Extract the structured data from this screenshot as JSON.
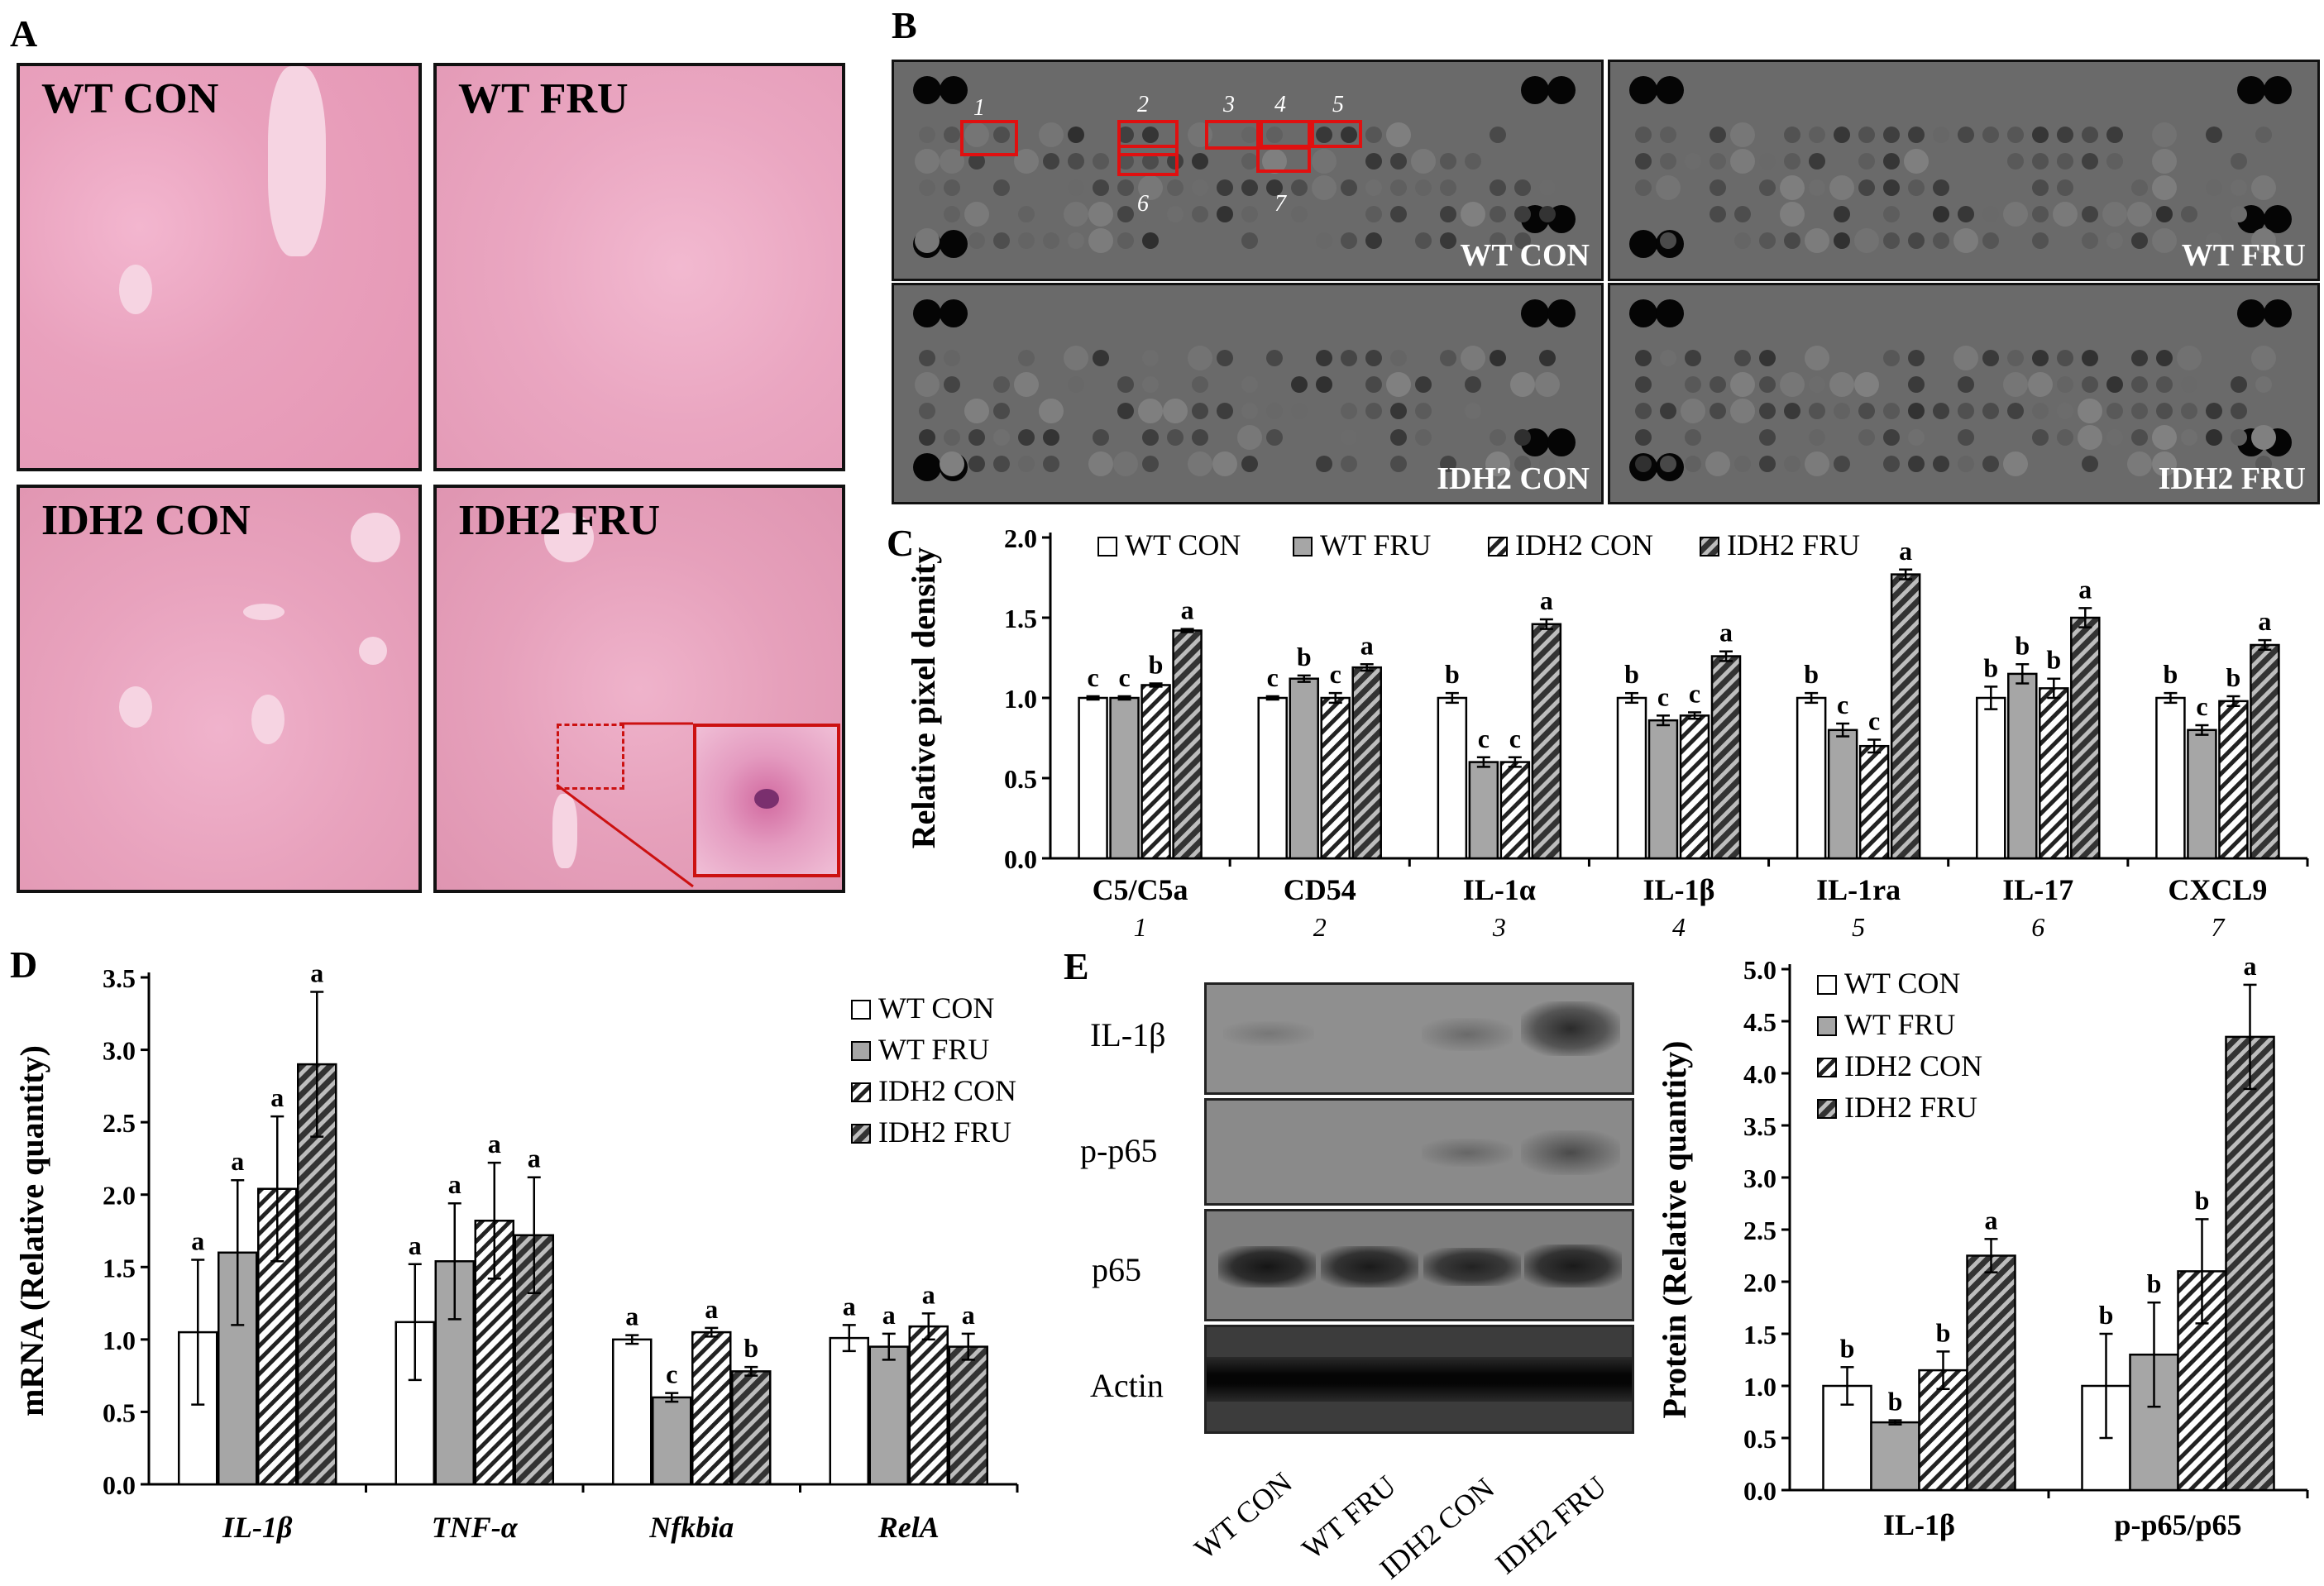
{
  "panels": {
    "A": "A",
    "B": "B",
    "C": "C",
    "D": "D",
    "E": "E"
  },
  "panel_a": {
    "images": [
      "WT CON",
      "WT FRU",
      "IDH2 CON",
      "IDH2 FRU"
    ]
  },
  "panel_b": {
    "images": [
      "WT CON",
      "WT FRU",
      "IDH2 CON",
      "IDH2 FRU"
    ],
    "spot_numbers": [
      "1",
      "2",
      "3",
      "4",
      "5",
      "6",
      "7"
    ]
  },
  "panel_e_blot": {
    "rows": [
      "IL-1β",
      "p-p65",
      "p65",
      "Actin"
    ],
    "lanes": [
      "WT CON",
      "WT FRU",
      "IDH2 CON",
      "IDH2 FRU"
    ]
  },
  "chart_data": [
    {
      "id": "C",
      "type": "bar",
      "ylabel": "Relative pixel density",
      "ylim": [
        0,
        2.0
      ],
      "yticks": [
        "0.0",
        "0.5",
        "1.0",
        "1.5",
        "2.0"
      ],
      "categories": [
        "C5/C5a",
        "CD54",
        "IL-1α",
        "IL-1β",
        "IL-1ra",
        "IL-17",
        "CXCL9"
      ],
      "category_numbers": [
        "1",
        "2",
        "3",
        "4",
        "5",
        "6",
        "7"
      ],
      "legend_position": "top",
      "series": [
        {
          "name": "WT CON",
          "values": [
            1.0,
            1.0,
            1.0,
            1.0,
            1.0,
            1.0,
            1.0
          ],
          "errors": [
            0.01,
            0.01,
            0.03,
            0.03,
            0.03,
            0.07,
            0.03
          ],
          "letters": [
            "c",
            "c",
            "b",
            "b",
            "b",
            "b",
            "b"
          ]
        },
        {
          "name": "WT FRU",
          "values": [
            1.0,
            1.12,
            0.6,
            0.86,
            0.8,
            1.15,
            0.8
          ],
          "errors": [
            0.01,
            0.02,
            0.03,
            0.03,
            0.04,
            0.06,
            0.03
          ],
          "letters": [
            "c",
            "b",
            "c",
            "c",
            "c",
            "b",
            "c"
          ]
        },
        {
          "name": "IDH2 CON",
          "values": [
            1.08,
            1.0,
            0.6,
            0.89,
            0.7,
            1.06,
            0.98
          ],
          "errors": [
            0.01,
            0.03,
            0.03,
            0.02,
            0.04,
            0.06,
            0.03
          ],
          "letters": [
            "b",
            "c",
            "c",
            "c",
            "c",
            "b",
            "b"
          ]
        },
        {
          "name": "IDH2 FRU",
          "values": [
            1.42,
            1.19,
            1.46,
            1.26,
            1.77,
            1.5,
            1.33
          ],
          "errors": [
            0.01,
            0.02,
            0.03,
            0.03,
            0.03,
            0.06,
            0.03
          ],
          "letters": [
            "a",
            "a",
            "a",
            "a",
            "a",
            "a",
            "a"
          ]
        }
      ]
    },
    {
      "id": "D",
      "type": "bar",
      "ylabel": "mRNA (Relative quantity)",
      "ylim": [
        0,
        3.5
      ],
      "yticks": [
        "0.0",
        "0.5",
        "1.0",
        "1.5",
        "2.0",
        "2.5",
        "3.0",
        "3.5"
      ],
      "categories": [
        "IL-1β",
        "TNF-α",
        "Nfkbia",
        "RelA"
      ],
      "legend_position": "top-right",
      "series": [
        {
          "name": "WT CON",
          "values": [
            1.05,
            1.12,
            1.0,
            1.01
          ],
          "errors": [
            0.5,
            0.4,
            0.03,
            0.09
          ],
          "letters": [
            "a",
            "a",
            "a",
            "a"
          ]
        },
        {
          "name": "WT FRU",
          "values": [
            1.6,
            1.54,
            0.6,
            0.95
          ],
          "errors": [
            0.5,
            0.4,
            0.03,
            0.09
          ],
          "letters": [
            "a",
            "a",
            "c",
            "a"
          ]
        },
        {
          "name": "IDH2 CON",
          "values": [
            2.04,
            1.82,
            1.05,
            1.09
          ],
          "errors": [
            0.5,
            0.4,
            0.03,
            0.09
          ],
          "letters": [
            "a",
            "a",
            "a",
            "a"
          ]
        },
        {
          "name": "IDH2 FRU",
          "values": [
            2.9,
            1.72,
            0.78,
            0.95
          ],
          "errors": [
            0.5,
            0.4,
            0.03,
            0.09
          ],
          "letters": [
            "a",
            "a",
            "b",
            "a"
          ]
        }
      ]
    },
    {
      "id": "E",
      "type": "bar",
      "ylabel": "Protein (Relative quantity)",
      "ylim": [
        0,
        5.0
      ],
      "yticks": [
        "0.0",
        "0.5",
        "1.0",
        "1.5",
        "2.0",
        "2.5",
        "3.0",
        "3.5",
        "4.0",
        "4.5",
        "5.0"
      ],
      "categories": [
        "IL-1β",
        "p-p65/p65"
      ],
      "legend_position": "top-left",
      "series": [
        {
          "name": "WT CON",
          "values": [
            1.0,
            1.0
          ],
          "errors": [
            0.18,
            0.5
          ],
          "letters": [
            "b",
            "b"
          ]
        },
        {
          "name": "WT FRU",
          "values": [
            0.65,
            1.3
          ],
          "errors": [
            0.02,
            0.5
          ],
          "letters": [
            "b",
            "b"
          ]
        },
        {
          "name": "IDH2 CON",
          "values": [
            1.15,
            2.1
          ],
          "errors": [
            0.18,
            0.5
          ],
          "letters": [
            "b",
            "b"
          ]
        },
        {
          "name": "IDH2 FRU",
          "values": [
            2.25,
            4.35
          ],
          "errors": [
            0.16,
            0.5
          ],
          "letters": [
            "a",
            "a"
          ]
        }
      ]
    }
  ]
}
